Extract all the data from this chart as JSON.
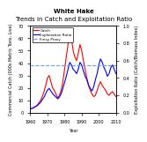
{
  "title1": "White Hake",
  "title2": "Trends in Catch and Exploitation Ratio",
  "xlabel": "Year",
  "ylabel_left": "Commercial Catch (000s Metric Tons, Live)",
  "ylabel_right": "Exploitation Ratio (Catch/Biomass Index)",
  "legend_labels": [
    "Catch",
    "Exploitation Ratio",
    "Fmsy Proxy"
  ],
  "fmsy_value": 0.55,
  "years": [
    1960,
    1961,
    1962,
    1963,
    1964,
    1965,
    1966,
    1967,
    1968,
    1969,
    1970,
    1971,
    1972,
    1973,
    1974,
    1975,
    1976,
    1977,
    1978,
    1979,
    1980,
    1981,
    1982,
    1983,
    1984,
    1985,
    1986,
    1987,
    1988,
    1989,
    1990,
    1991,
    1992,
    1993,
    1994,
    1995,
    1996,
    1997,
    1998,
    1999,
    2000,
    2001,
    2002,
    2003,
    2004,
    2005,
    2006,
    2007,
    2008,
    2009,
    2010
  ],
  "catch": [
    3,
    3.5,
    4,
    5,
    6,
    8,
    10,
    13,
    17,
    22,
    28,
    30,
    25,
    20,
    18,
    15,
    12,
    14,
    18,
    25,
    35,
    45,
    55,
    65,
    60,
    50,
    45,
    42,
    48,
    55,
    50,
    42,
    35,
    28,
    22,
    18,
    15,
    13,
    14,
    18,
    22,
    25,
    22,
    20,
    18,
    15,
    14,
    16,
    17,
    15,
    13
  ],
  "exploit": [
    0.05,
    0.05,
    0.06,
    0.07,
    0.08,
    0.1,
    0.12,
    0.15,
    0.18,
    0.22,
    0.26,
    0.28,
    0.25,
    0.22,
    0.2,
    0.18,
    0.16,
    0.18,
    0.22,
    0.28,
    0.35,
    0.42,
    0.5,
    0.58,
    0.55,
    0.5,
    0.48,
    0.45,
    0.5,
    0.58,
    0.55,
    0.48,
    0.42,
    0.38,
    0.32,
    0.28,
    0.25,
    0.3,
    0.38,
    0.45,
    0.55,
    0.62,
    0.58,
    0.52,
    0.48,
    0.42,
    0.45,
    0.52,
    0.55,
    0.5,
    0.45
  ],
  "catch_color": "#ff0000",
  "exploit_color": "#0000ff",
  "fmsy_color": "#6699ff",
  "bg_color": "#ffffff",
  "xlim": [
    1960,
    2010
  ],
  "ylim_left": [
    0,
    70
  ],
  "ylim_right": [
    0,
    1.0
  ],
  "xticks": [
    1960,
    1970,
    1980,
    1990,
    2000,
    2010
  ],
  "title_fontsize": 5,
  "label_fontsize": 3.5,
  "tick_fontsize": 3.5,
  "legend_fontsize": 3
}
